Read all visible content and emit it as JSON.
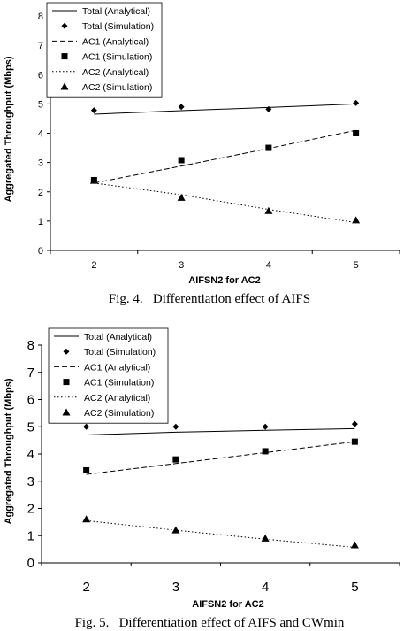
{
  "charts": [
    {
      "ylabel": "Aggregated Throughput (Mbps)",
      "xlabel": "AIFSN2 for AC2",
      "caption": "Fig. 4.   Differentiation effect of AIFS",
      "legend": [
        "Total (Analytical)",
        "Total (Simulation)",
        "AC1 (Analytical)",
        "AC1 (Simulation)",
        "AC2 (Analytical)",
        "AC2 (Simulation)"
      ]
    },
    {
      "ylabel": "Aggregated Throughput (Mbps)",
      "xlabel": "AIFSN2 for AC2",
      "caption": "Fig. 5.   Differentiation effect of AIFS and CWmin",
      "legend": [
        "Total (Analytical)",
        "Total (Simulation)",
        "AC1 (Analytical)",
        "AC1 (Simulation)",
        "AC2 (Analytical)",
        "AC2 (Simulation)"
      ]
    }
  ],
  "chart_data": [
    {
      "type": "line",
      "x": [
        2,
        3,
        4,
        5
      ],
      "ylim": [
        0,
        8
      ],
      "xlabel": "AIFSN2 for AC2",
      "ylabel": "Aggregated Throughput (Mbps)",
      "grid": false,
      "legend_position": "top-left",
      "series": [
        {
          "name": "Total (Analytical)",
          "style": "solid",
          "marker": "none",
          "values": [
            4.65,
            4.77,
            4.88,
            5.0
          ]
        },
        {
          "name": "Total (Simulation)",
          "style": "none",
          "marker": "diamond",
          "values": [
            4.78,
            4.9,
            4.82,
            5.03
          ]
        },
        {
          "name": "AC1 (Analytical)",
          "style": "dashed",
          "marker": "none",
          "values": [
            2.3,
            2.88,
            3.48,
            4.1
          ]
        },
        {
          "name": "AC1 (Simulation)",
          "style": "none",
          "marker": "square",
          "values": [
            2.4,
            3.08,
            3.5,
            4.0
          ]
        },
        {
          "name": "AC2 (Analytical)",
          "style": "dotted",
          "marker": "none",
          "values": [
            2.3,
            1.9,
            1.4,
            0.95
          ]
        },
        {
          "name": "AC2 (Simulation)",
          "style": "none",
          "marker": "triangle",
          "values": [
            2.38,
            1.8,
            1.35,
            1.03
          ]
        }
      ]
    },
    {
      "type": "line",
      "x": [
        2,
        3,
        4,
        5
      ],
      "ylim": [
        0,
        8
      ],
      "xlabel": "AIFSN2 for AC2",
      "ylabel": "Aggregated Throughput (Mbps)",
      "grid": false,
      "legend_position": "top-left",
      "series": [
        {
          "name": "Total (Analytical)",
          "style": "solid",
          "marker": "none",
          "values": [
            4.7,
            4.8,
            4.87,
            4.93
          ]
        },
        {
          "name": "Total (Simulation)",
          "style": "none",
          "marker": "diamond",
          "values": [
            5.0,
            5.0,
            5.0,
            5.1
          ]
        },
        {
          "name": "AC1 (Analytical)",
          "style": "dashed",
          "marker": "none",
          "values": [
            3.25,
            3.65,
            4.05,
            4.45
          ]
        },
        {
          "name": "AC1 (Simulation)",
          "style": "none",
          "marker": "square",
          "values": [
            3.4,
            3.8,
            4.1,
            4.45
          ]
        },
        {
          "name": "AC2 (Analytical)",
          "style": "dotted",
          "marker": "none",
          "values": [
            1.55,
            1.2,
            0.87,
            0.57
          ]
        },
        {
          "name": "AC2 (Simulation)",
          "style": "none",
          "marker": "triangle",
          "values": [
            1.6,
            1.2,
            0.9,
            0.65
          ]
        }
      ]
    }
  ]
}
